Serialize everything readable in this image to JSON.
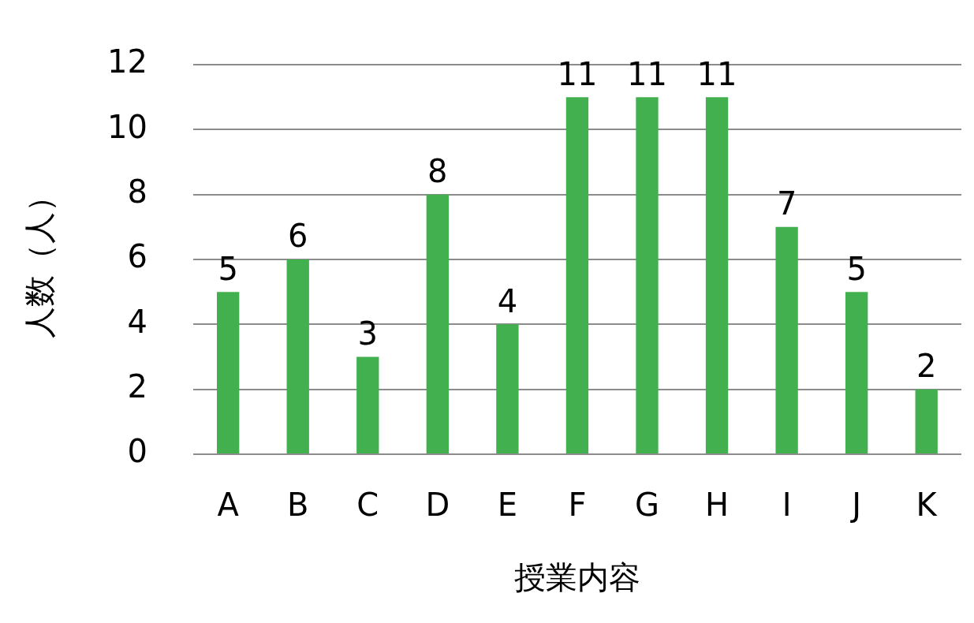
{
  "chart_data": {
    "type": "bar",
    "xlabel": "授業内容",
    "ylabel": "人数（人）",
    "categories": [
      "A",
      "B",
      "C",
      "D",
      "E",
      "F",
      "G",
      "H",
      "I",
      "J",
      "K"
    ],
    "values": [
      5,
      6,
      3,
      8,
      4,
      11,
      11,
      11,
      7,
      5,
      2
    ],
    "color": "#43b04f",
    "ylim": [
      0,
      12
    ],
    "yticks": [
      0,
      2,
      4,
      6,
      8,
      10,
      12
    ],
    "grid": "y",
    "data_labels": true,
    "legend": false
  }
}
